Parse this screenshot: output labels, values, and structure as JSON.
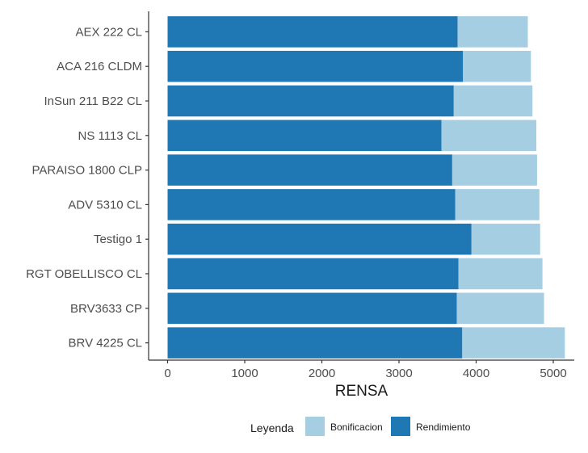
{
  "chart_data": {
    "type": "bar",
    "orientation": "horizontal",
    "stacked": true,
    "categories": [
      "AEX 222 CL",
      "ACA 216 CLDM",
      "InSun 211 B22 CL",
      "NS 1113 CL",
      "PARAISO 1800 CLP",
      "ADV 5310 CL",
      "Testigo 1",
      "RGT OBELLISCO CL",
      "BRV3633 CP",
      "BRV 4225 CL"
    ],
    "series": [
      {
        "name": "Rendimiento",
        "color": "#1f78b4",
        "values": [
          3760,
          3830,
          3710,
          3550,
          3690,
          3730,
          3940,
          3770,
          3750,
          3820
        ]
      },
      {
        "name": "Bonificacion",
        "color": "#a6cee3",
        "values": [
          910,
          880,
          1020,
          1230,
          1100,
          1090,
          890,
          1090,
          1130,
          1330
        ]
      }
    ],
    "title": "",
    "xlabel": "RENSA",
    "ylabel": "",
    "xlim": [
      0,
      5300
    ],
    "x_ticks": [
      0,
      1000,
      2000,
      3000,
      4000,
      5000
    ],
    "grid": false,
    "legend": {
      "title": "Leyenda",
      "position": "bottom",
      "entries": [
        {
          "label": "Bonificacion",
          "color": "#a6cee3"
        },
        {
          "label": "Rendimiento",
          "color": "#1f78b4"
        }
      ]
    }
  }
}
